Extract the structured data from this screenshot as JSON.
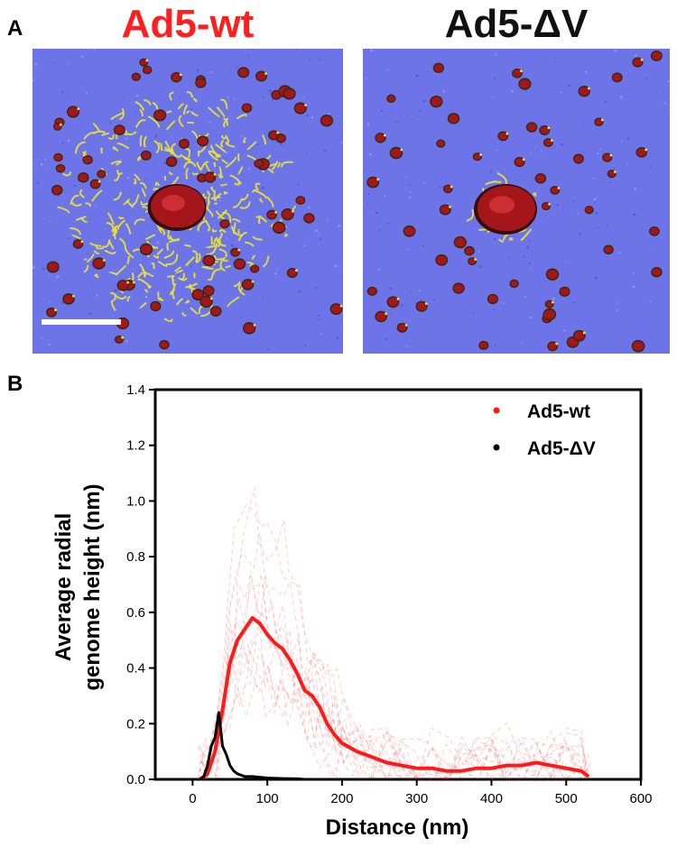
{
  "panel_a": {
    "label": "A",
    "images": [
      {
        "title": "Ad5-wt",
        "title_color": "#ff1f1f"
      },
      {
        "title": "Ad5-ΔV",
        "title_color": "#111111"
      }
    ]
  },
  "panel_b": {
    "label": "B"
  },
  "colors": {
    "afm_background": "#6d74e8",
    "particle_red": "#a4161a",
    "dna_yellow": "#e8e33a",
    "scale_bar": "#ffffff"
  },
  "chart_data": {
    "type": "line",
    "title": "",
    "xlabel": "Distance (nm)",
    "ylabel_lines": [
      "Average radial",
      "genome height (nm)"
    ],
    "xlim": [
      -50,
      600
    ],
    "ylim": [
      0,
      1.4
    ],
    "xticks": [
      0,
      100,
      200,
      300,
      400,
      500,
      600
    ],
    "yticks": [
      0.0,
      0.2,
      0.4,
      0.6,
      0.8,
      1.0,
      1.2,
      1.4
    ],
    "grid": false,
    "legend_position": "top-right",
    "series": [
      {
        "name": "Ad5-wt",
        "color": "#ff1a1a",
        "x": [
          10,
          20,
          30,
          40,
          50,
          60,
          70,
          80,
          90,
          100,
          110,
          120,
          130,
          140,
          150,
          160,
          170,
          180,
          190,
          200,
          220,
          240,
          260,
          280,
          300,
          320,
          340,
          360,
          380,
          400,
          420,
          440,
          460,
          480,
          500,
          520,
          530
        ],
        "values": [
          0.0,
          0.02,
          0.1,
          0.25,
          0.42,
          0.5,
          0.54,
          0.58,
          0.56,
          0.52,
          0.49,
          0.47,
          0.43,
          0.38,
          0.32,
          0.3,
          0.26,
          0.2,
          0.16,
          0.13,
          0.1,
          0.08,
          0.06,
          0.05,
          0.04,
          0.04,
          0.03,
          0.03,
          0.04,
          0.04,
          0.05,
          0.05,
          0.06,
          0.05,
          0.04,
          0.03,
          0.01
        ]
      },
      {
        "name": "Ad5-ΔV",
        "color": "#000000",
        "x": [
          10,
          15,
          20,
          25,
          30,
          35,
          40,
          45,
          50,
          55,
          60,
          70,
          80,
          100,
          120,
          140,
          150
        ],
        "values": [
          0.0,
          0.01,
          0.05,
          0.12,
          0.15,
          0.24,
          0.12,
          0.09,
          0.05,
          0.03,
          0.02,
          0.01,
          0.01,
          0.005,
          0.003,
          0.002,
          0.0
        ]
      }
    ]
  }
}
